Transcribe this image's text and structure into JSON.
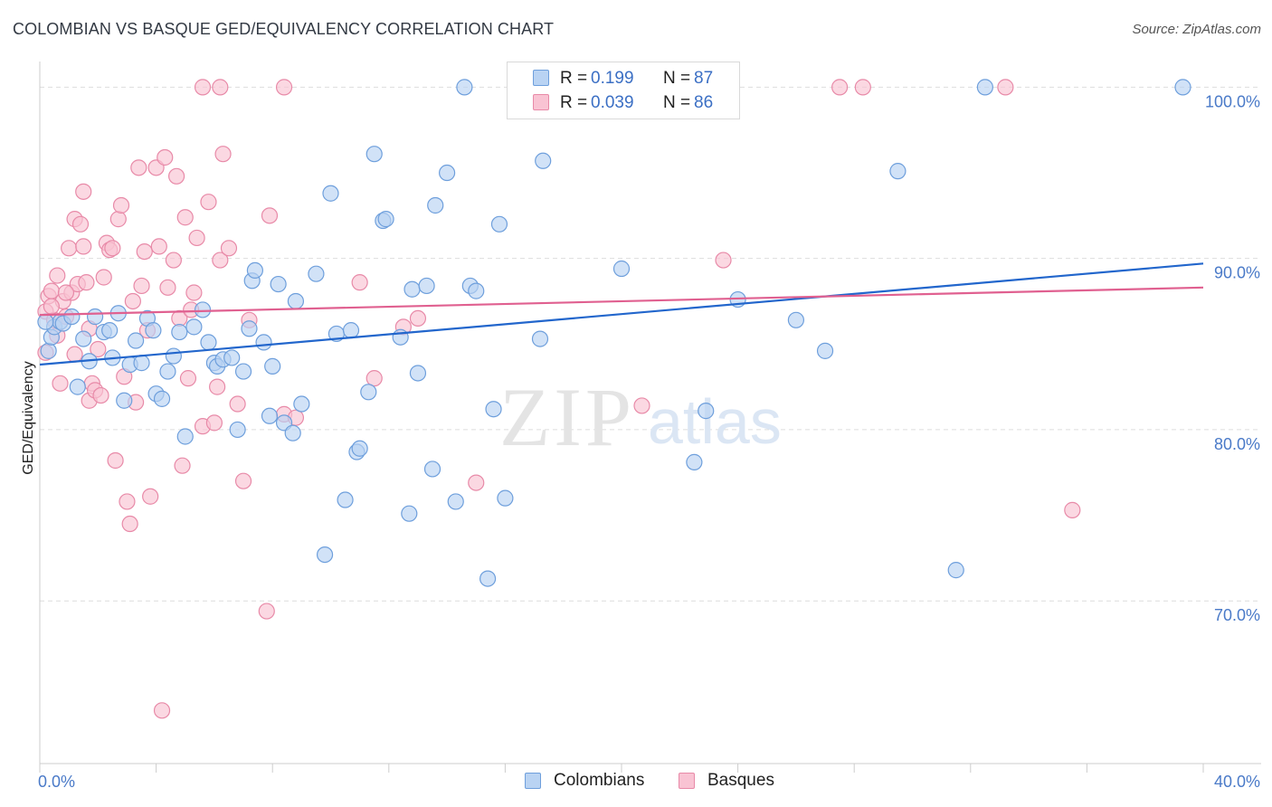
{
  "title": "COLOMBIAN VS BASQUE GED/EQUIVALENCY CORRELATION CHART",
  "source": "Source: ZipAtlas.com",
  "watermark": {
    "zip": "ZIP",
    "atlas": "atlas"
  },
  "colors": {
    "colombian_fill": "#b9d3f3",
    "colombian_stroke": "#6e9fdc",
    "colombian_line": "#2266cc",
    "basque_fill": "#f9c3d3",
    "basque_stroke": "#e88aa8",
    "basque_line": "#e06090",
    "tick_text": "#4a7ac8",
    "grid": "#dddddd"
  },
  "legend": {
    "rows": [
      {
        "r_label": "R =",
        "r_value": "0.199",
        "n_label": "N =",
        "n_value": "87"
      },
      {
        "r_label": "R =",
        "r_value": "0.039",
        "n_label": "N =",
        "n_value": "86"
      }
    ]
  },
  "bottom_legend": [
    "Colombians",
    "Basques"
  ],
  "chart_data": {
    "type": "scatter",
    "title": "COLOMBIAN VS BASQUE GED/EQUIVALENCY CORRELATION CHART",
    "xlabel": "",
    "ylabel": "GED/Equivalency",
    "xlim": [
      0,
      40
    ],
    "ylim": [
      60.5,
      101.5
    ],
    "x_tick_labels": [
      "0.0%",
      "40.0%"
    ],
    "y_ticks": [
      70,
      80,
      90,
      100
    ],
    "y_tick_labels": [
      "70.0%",
      "80.0%",
      "90.0%",
      "100.0%"
    ],
    "series": [
      {
        "name": "Colombians",
        "r": 0.199,
        "n": 87,
        "trend": {
          "x": [
            0,
            40
          ],
          "y": [
            83.8,
            89.7
          ]
        },
        "points": [
          [
            0.3,
            84.6
          ],
          [
            0.4,
            85.4
          ],
          [
            0.5,
            86.0
          ],
          [
            0.7,
            86.3
          ],
          [
            0.8,
            86.2
          ],
          [
            1.1,
            86.6
          ],
          [
            1.3,
            82.5
          ],
          [
            1.5,
            85.3
          ],
          [
            1.7,
            84.0
          ],
          [
            1.9,
            86.6
          ],
          [
            2.2,
            85.7
          ],
          [
            2.4,
            85.8
          ],
          [
            2.5,
            84.2
          ],
          [
            2.7,
            86.8
          ],
          [
            2.9,
            81.7
          ],
          [
            3.1,
            83.8
          ],
          [
            3.3,
            85.2
          ],
          [
            3.5,
            83.9
          ],
          [
            3.7,
            86.5
          ],
          [
            3.9,
            85.8
          ],
          [
            4.0,
            82.1
          ],
          [
            4.2,
            81.8
          ],
          [
            4.4,
            83.4
          ],
          [
            4.6,
            84.3
          ],
          [
            4.8,
            85.7
          ],
          [
            5.0,
            79.6
          ],
          [
            5.3,
            86.0
          ],
          [
            5.6,
            87.0
          ],
          [
            5.8,
            85.1
          ],
          [
            6.0,
            83.9
          ],
          [
            6.1,
            83.7
          ],
          [
            6.3,
            84.1
          ],
          [
            6.6,
            84.2
          ],
          [
            6.8,
            80.0
          ],
          [
            7.0,
            83.4
          ],
          [
            7.2,
            85.9
          ],
          [
            7.3,
            88.7
          ],
          [
            7.4,
            89.3
          ],
          [
            7.7,
            85.1
          ],
          [
            7.9,
            80.8
          ],
          [
            8.0,
            83.7
          ],
          [
            8.2,
            88.5
          ],
          [
            8.4,
            80.4
          ],
          [
            8.7,
            79.8
          ],
          [
            8.8,
            87.5
          ],
          [
            9.0,
            81.5
          ],
          [
            9.5,
            89.1
          ],
          [
            9.8,
            72.7
          ],
          [
            10.0,
            93.8
          ],
          [
            10.2,
            85.6
          ],
          [
            10.5,
            75.9
          ],
          [
            10.7,
            85.8
          ],
          [
            10.9,
            78.7
          ],
          [
            11.0,
            78.9
          ],
          [
            11.3,
            82.2
          ],
          [
            11.5,
            96.1
          ],
          [
            11.8,
            92.2
          ],
          [
            11.9,
            92.3
          ],
          [
            12.4,
            85.4
          ],
          [
            12.7,
            75.1
          ],
          [
            12.8,
            88.2
          ],
          [
            13.0,
            83.3
          ],
          [
            13.3,
            88.4
          ],
          [
            13.5,
            77.7
          ],
          [
            13.6,
            93.1
          ],
          [
            14.0,
            95.0
          ],
          [
            14.3,
            75.8
          ],
          [
            14.6,
            100.0
          ],
          [
            14.8,
            88.4
          ],
          [
            15.0,
            88.1
          ],
          [
            15.4,
            71.3
          ],
          [
            15.6,
            81.2
          ],
          [
            15.8,
            92.0
          ],
          [
            16.0,
            76.0
          ],
          [
            17.2,
            85.3
          ],
          [
            17.3,
            95.7
          ],
          [
            20.0,
            89.4
          ],
          [
            22.5,
            78.1
          ],
          [
            22.9,
            81.1
          ],
          [
            24.0,
            87.6
          ],
          [
            26.0,
            86.4
          ],
          [
            27.0,
            84.6
          ],
          [
            29.5,
            95.1
          ],
          [
            31.5,
            71.8
          ],
          [
            32.5,
            100.0
          ],
          [
            39.3,
            100.0
          ],
          [
            0.2,
            86.3
          ]
        ]
      },
      {
        "name": "Basques",
        "r": 0.039,
        "n": 86,
        "trend": {
          "x": [
            0,
            40
          ],
          "y": [
            86.7,
            88.3
          ]
        },
        "points": [
          [
            0.2,
            84.5
          ],
          [
            0.2,
            86.9
          ],
          [
            0.3,
            87.8
          ],
          [
            0.4,
            88.1
          ],
          [
            0.5,
            86.4
          ],
          [
            0.6,
            89.0
          ],
          [
            0.7,
            82.7
          ],
          [
            0.8,
            87.5
          ],
          [
            0.9,
            86.6
          ],
          [
            1.0,
            90.6
          ],
          [
            1.1,
            88.0
          ],
          [
            1.2,
            92.3
          ],
          [
            1.3,
            88.5
          ],
          [
            1.4,
            92.0
          ],
          [
            1.5,
            93.9
          ],
          [
            1.5,
            90.7
          ],
          [
            1.6,
            88.6
          ],
          [
            1.7,
            81.7
          ],
          [
            1.8,
            82.7
          ],
          [
            1.9,
            82.3
          ],
          [
            2.1,
            82.0
          ],
          [
            2.2,
            88.9
          ],
          [
            2.3,
            90.9
          ],
          [
            2.4,
            90.5
          ],
          [
            2.5,
            90.6
          ],
          [
            2.6,
            78.2
          ],
          [
            2.7,
            92.3
          ],
          [
            2.8,
            93.1
          ],
          [
            2.9,
            83.1
          ],
          [
            3.0,
            75.8
          ],
          [
            3.1,
            74.5
          ],
          [
            3.3,
            81.6
          ],
          [
            3.4,
            95.3
          ],
          [
            3.5,
            88.4
          ],
          [
            3.6,
            90.4
          ],
          [
            3.7,
            85.8
          ],
          [
            3.8,
            76.1
          ],
          [
            4.0,
            95.3
          ],
          [
            4.1,
            90.7
          ],
          [
            4.3,
            95.9
          ],
          [
            4.4,
            88.3
          ],
          [
            4.6,
            89.9
          ],
          [
            4.7,
            94.8
          ],
          [
            4.8,
            86.5
          ],
          [
            4.9,
            77.9
          ],
          [
            5.0,
            92.4
          ],
          [
            5.1,
            83.0
          ],
          [
            5.2,
            87.0
          ],
          [
            5.3,
            88.0
          ],
          [
            5.4,
            91.2
          ],
          [
            5.6,
            80.2
          ],
          [
            5.8,
            93.3
          ],
          [
            6.0,
            80.4
          ],
          [
            6.1,
            82.5
          ],
          [
            6.2,
            89.9
          ],
          [
            6.3,
            96.1
          ],
          [
            6.5,
            90.6
          ],
          [
            6.8,
            81.5
          ],
          [
            7.0,
            77.0
          ],
          [
            7.2,
            86.4
          ],
          [
            7.8,
            69.4
          ],
          [
            7.9,
            92.5
          ],
          [
            8.4,
            80.9
          ],
          [
            8.8,
            80.7
          ],
          [
            11.0,
            88.6
          ],
          [
            11.5,
            83.0
          ],
          [
            12.5,
            86.0
          ],
          [
            13.0,
            86.5
          ],
          [
            15.0,
            76.9
          ],
          [
            20.7,
            81.4
          ],
          [
            23.5,
            89.9
          ],
          [
            27.5,
            100.0
          ],
          [
            28.3,
            100.0
          ],
          [
            33.2,
            100.0
          ],
          [
            35.5,
            75.3
          ],
          [
            4.2,
            63.6
          ],
          [
            5.6,
            100.0
          ],
          [
            8.4,
            100.0
          ],
          [
            6.2,
            100.0
          ],
          [
            1.7,
            85.9
          ],
          [
            2.0,
            84.7
          ],
          [
            3.2,
            87.5
          ],
          [
            0.9,
            88.0
          ],
          [
            1.2,
            84.4
          ],
          [
            0.4,
            87.2
          ],
          [
            0.6,
            85.5
          ]
        ]
      }
    ]
  }
}
